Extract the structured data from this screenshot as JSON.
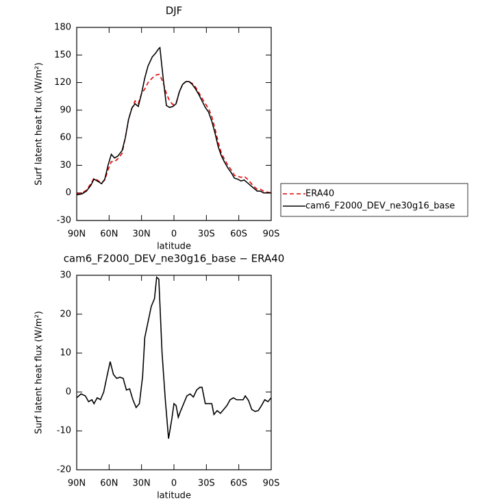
{
  "chart_data": [
    {
      "type": "line",
      "title": "DJF",
      "xlabel": "latitude",
      "ylabel": "Surf latent heat flux (W/m²)",
      "x": [
        90,
        85,
        81,
        77,
        74,
        71,
        67,
        64,
        61,
        58,
        55,
        52,
        48,
        45,
        42,
        39,
        36,
        33,
        30,
        27,
        24,
        20,
        17,
        14,
        13,
        10,
        7,
        4,
        1,
        -2,
        -5,
        -8,
        -11,
        -14,
        -17,
        -20,
        -23,
        -26,
        -29,
        -32,
        -35,
        -38,
        -41,
        -44,
        -47,
        -50,
        -53,
        -56,
        -59,
        -62,
        -65,
        -68,
        -71,
        -74,
        -77,
        -80,
        -83,
        -86,
        -90
      ],
      "xlim": [
        90,
        -90
      ],
      "xticks": [
        {
          "value": 90,
          "label": "90N"
        },
        {
          "value": 60,
          "label": "60N"
        },
        {
          "value": 30,
          "label": "30N"
        },
        0,
        {
          "value": -30,
          "label": "30S"
        },
        {
          "value": -60,
          "label": "60S"
        },
        {
          "value": -90,
          "label": "90S"
        }
      ],
      "ylim": [
        -30,
        180
      ],
      "yticks": [
        -30,
        0,
        30,
        60,
        90,
        120,
        150,
        180
      ],
      "legend": "outside-right",
      "series": [
        {
          "name": "ERA40",
          "color": "#e00000",
          "linestyle": "dashed",
          "values": [
            -1,
            0,
            3,
            10,
            16,
            14,
            11,
            14,
            25,
            34,
            34,
            37,
            43,
            60,
            80,
            92,
            100,
            97,
            108,
            113,
            120,
            125,
            128,
            129,
            128,
            120,
            108,
            100,
            96,
            98,
            110,
            118,
            121,
            121,
            119,
            115,
            109,
            103,
            97,
            92,
            83,
            70,
            55,
            43,
            36,
            30,
            25,
            19,
            18,
            17,
            18,
            15,
            11,
            7,
            4,
            4,
            2,
            1,
            0
          ]
        },
        {
          "name": "cam6_F2000_DEV_ne30g16_base",
          "color": "#000000",
          "linestyle": "solid",
          "values": [
            -2,
            -1,
            2,
            8,
            15,
            13,
            10,
            15,
            30,
            42,
            38,
            40,
            46,
            60,
            80,
            92,
            97,
            94,
            108,
            125,
            138,
            148,
            152,
            157,
            158,
            125,
            95,
            93,
            94,
            97,
            110,
            118,
            121,
            121,
            118,
            113,
            107,
            100,
            93,
            88,
            78,
            65,
            50,
            40,
            33,
            27,
            22,
            16,
            15,
            13,
            14,
            11,
            8,
            5,
            2,
            2,
            0,
            0,
            0
          ]
        }
      ]
    },
    {
      "type": "line",
      "title": "cam6_F2000_DEV_ne30g16_base − ERA40",
      "xlabel": "latitude",
      "ylabel": "Surf latent heat flux (W/m²)",
      "x": [
        90,
        86,
        82,
        79,
        76,
        74,
        71,
        68,
        65,
        62,
        59,
        56,
        53,
        50,
        47,
        44,
        41,
        38,
        35,
        32,
        29,
        27,
        24,
        21,
        18,
        16,
        14,
        11,
        8,
        5,
        2,
        0,
        -2,
        -4,
        -6,
        -9,
        -12,
        -15,
        -18,
        -21,
        -24,
        -26,
        -29,
        -32,
        -35,
        -37,
        -40,
        -43,
        -46,
        -49,
        -52,
        -55,
        -58,
        -61,
        -64,
        -66,
        -69,
        -72,
        -75,
        -78,
        -81,
        -84,
        -87,
        -90
      ],
      "xlim": [
        90,
        -90
      ],
      "xticks": [
        {
          "value": 90,
          "label": "90N"
        },
        {
          "value": 60,
          "label": "60N"
        },
        {
          "value": 30,
          "label": "30N"
        },
        0,
        {
          "value": -30,
          "label": "30S"
        },
        {
          "value": -60,
          "label": "60S"
        },
        {
          "value": -90,
          "label": "90S"
        }
      ],
      "ylim": [
        -20,
        30
      ],
      "yticks": [
        -20,
        -10,
        0,
        10,
        20,
        30
      ],
      "series": [
        {
          "color": "#000000",
          "linestyle": "solid",
          "values": [
            -1.5,
            -0.5,
            -1,
            -2.5,
            -2,
            -3,
            -1.5,
            -2,
            0,
            4,
            7.8,
            4.5,
            3.5,
            3.8,
            3.5,
            0.5,
            0.8,
            -2,
            -4,
            -3,
            4,
            14,
            18,
            22,
            24,
            29.5,
            29,
            10,
            -2,
            -12,
            -7,
            -3,
            -3.5,
            -6.5,
            -5,
            -3,
            -1,
            -0.5,
            -1.3,
            0.5,
            1.2,
            1.2,
            -3,
            -3,
            -3,
            -5.8,
            -4.8,
            -5.5,
            -4.5,
            -3.5,
            -2,
            -1.5,
            -2,
            -2,
            -2,
            -1,
            -2.2,
            -4.5,
            -5,
            -4.8,
            -3.5,
            -2,
            -2.5,
            -1.5
          ]
        }
      ]
    }
  ]
}
